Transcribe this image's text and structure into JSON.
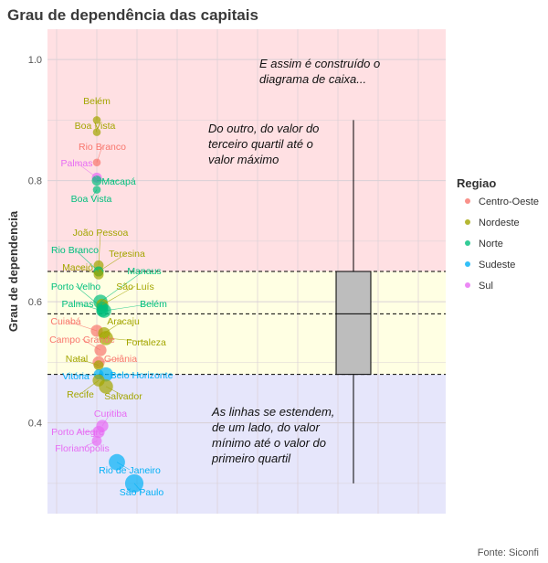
{
  "chart_data": {
    "type": "scatter",
    "title": "Grau de dependência das capitais",
    "ylabel": "Grau de dependencia",
    "xlabel": "",
    "ylim": [
      0.25,
      1.05
    ],
    "yticks": [
      0.4,
      0.6,
      0.8,
      1.0
    ],
    "ytick_labels": [
      "0.4",
      "0.6",
      "0.8",
      "1.0"
    ],
    "grid": true,
    "caption": "Fonte: Siconfi",
    "bands": [
      {
        "from": 0.65,
        "to": 1.05,
        "color": "#ffe0e3"
      },
      {
        "from": 0.48,
        "to": 0.65,
        "color": "#ffffe3"
      },
      {
        "from": 0.25,
        "to": 0.48,
        "color": "#e6e6fb"
      }
    ],
    "quartile_lines": [
      0.65,
      0.58,
      0.48
    ],
    "boxplot": {
      "min": 0.3,
      "q1": 0.48,
      "median": 0.58,
      "q3": 0.65,
      "max": 0.9
    },
    "legend": {
      "title": "Regiao",
      "position": "right",
      "items": [
        {
          "name": "Centro-Oeste",
          "color": "#f8766d"
        },
        {
          "name": "Nordeste",
          "color": "#a3a500"
        },
        {
          "name": "Norte",
          "color": "#00bf7d"
        },
        {
          "name": "Sudeste",
          "color": "#00b0f6"
        },
        {
          "name": "Sul",
          "color": "#e76bf3"
        }
      ]
    },
    "points": [
      {
        "name": "Belém",
        "region": "Nordeste",
        "y": 0.9,
        "size": 2
      },
      {
        "name": "Boa Vista",
        "region": "Nordeste",
        "y": 0.88,
        "size": 2
      },
      {
        "name": "Rio Branco",
        "region": "Centro-Oeste",
        "y": 0.83,
        "size": 2
      },
      {
        "name": "Palmas",
        "region": "Sul",
        "y": 0.805,
        "size": 3
      },
      {
        "name": "Macapá",
        "region": "Norte",
        "y": 0.8,
        "size": 3
      },
      {
        "name": "Boa Vista",
        "region": "Norte",
        "y": 0.785,
        "size": 2
      },
      {
        "name": "João Pessoa",
        "region": "Nordeste",
        "y": 0.66,
        "size": 3
      },
      {
        "name": "Teresina",
        "region": "Nordeste",
        "y": 0.65,
        "size": 3
      },
      {
        "name": "Rio Branco",
        "region": "Norte",
        "y": 0.65,
        "size": 3
      },
      {
        "name": "Maceió",
        "region": "Nordeste",
        "y": 0.645,
        "size": 3
      },
      {
        "name": "Manaus",
        "region": "Norte",
        "y": 0.6,
        "size": 5
      },
      {
        "name": "São Luís",
        "region": "Nordeste",
        "y": 0.595,
        "size": 4
      },
      {
        "name": "Porto Velho",
        "region": "Norte",
        "y": 0.59,
        "size": 4
      },
      {
        "name": "Palmas",
        "region": "Norte",
        "y": 0.585,
        "size": 4
      },
      {
        "name": "Belém",
        "region": "Norte",
        "y": 0.585,
        "size": 5
      },
      {
        "name": "Cuiabá",
        "region": "Centro-Oeste",
        "y": 0.552,
        "size": 4
      },
      {
        "name": "Aracaju",
        "region": "Nordeste",
        "y": 0.548,
        "size": 4
      },
      {
        "name": "Fortaleza",
        "region": "Nordeste",
        "y": 0.54,
        "size": 5
      },
      {
        "name": "Campo Grande",
        "region": "Centro-Oeste",
        "y": 0.52,
        "size": 4
      },
      {
        "name": "Goiânia",
        "region": "Centro-Oeste",
        "y": 0.5,
        "size": 4
      },
      {
        "name": "Natal",
        "region": "Nordeste",
        "y": 0.495,
        "size": 3
      },
      {
        "name": "Vitória",
        "region": "Sudeste",
        "y": 0.48,
        "size": 3
      },
      {
        "name": "Belo Horizonte",
        "region": "Sudeste",
        "y": 0.48,
        "size": 5
      },
      {
        "name": "Recife",
        "region": "Nordeste",
        "y": 0.47,
        "size": 4
      },
      {
        "name": "Salvador",
        "region": "Nordeste",
        "y": 0.46,
        "size": 5
      },
      {
        "name": "Curitiba",
        "region": "Sul",
        "y": 0.395,
        "size": 4
      },
      {
        "name": "Porto Alegre",
        "region": "Sul",
        "y": 0.385,
        "size": 4
      },
      {
        "name": "Florianópolis",
        "region": "Sul",
        "y": 0.37,
        "size": 3
      },
      {
        "name": "Rio de Janeiro",
        "region": "Sudeste",
        "y": 0.335,
        "size": 6
      },
      {
        "name": "São Paulo",
        "region": "Sudeste",
        "y": 0.3,
        "size": 7
      }
    ]
  },
  "annotations": [
    {
      "lines": [
        "E assim é construído o",
        "diagrama de caixa..."
      ]
    },
    {
      "lines": [
        "Do outro, do valor do",
        "terceiro quartil até o",
        "valor máximo"
      ]
    },
    {
      "lines": [
        "As linhas se estendem,",
        "de um lado, do valor",
        "mínimo até o valor do",
        "primeiro quartil"
      ]
    }
  ]
}
